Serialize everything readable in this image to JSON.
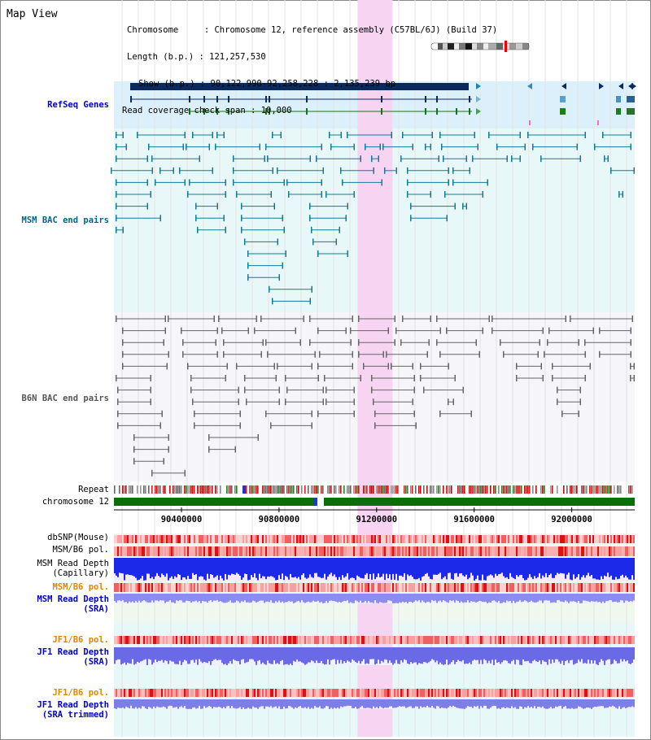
{
  "title": "Map View",
  "info": {
    "chromosome_key": "Chromosome",
    "chromosome_val": "Chromosome 12, reference assembly (C57BL/6J) (Build 37)",
    "length_key": "Length (b.p.)",
    "length_val": "121,257,530",
    "show_key": "Show (b.p.)",
    "show_val": "90,122,990-92,258,228 : 2,135,239 bp",
    "span_key": "Read coverage check span",
    "span_val": "10,000"
  },
  "tracks": {
    "refseq": "RefSeq Genes",
    "msm_bac": "MSM BAC end pairs",
    "b6n_bac": "B6N BAC end pairs",
    "repeat": "Repeat",
    "chromosome": "chromosome 12",
    "dbsnp": "dbSNP(Mouse)",
    "msm_b6_pol": "MSM/B6 pol.",
    "msm_read_depth": "MSM Read Depth",
    "capillary": "(Capillary)",
    "msm_b6_pol_2": "MSM/B6 pol.",
    "msm_read_depth_sra": "MSM Read Depth",
    "sra": "(SRA)",
    "jf1_b6_pol": "JF1/B6 pol.",
    "jf1_read_depth": "JF1 Read Depth",
    "jf1_sra": "(SRA)",
    "jf1_b6_pol_2": "JF1/B6 pol.",
    "jf1_read_depth_trim": "JF1 Read Depth",
    "sra_trimmed": "(SRA trimmed)"
  },
  "axis": {
    "ticks": [
      "90400000",
      "90800000",
      "91200000",
      "91600000",
      "92000000"
    ],
    "tick_values": [
      90400000,
      90800000,
      91200000,
      91600000,
      92000000
    ],
    "start": 90122990,
    "end": 92258228
  },
  "highlight": {
    "start": 91122000,
    "end": 91265000
  },
  "colors": {
    "label_blue": "#0000cc",
    "label_teal": "#006688",
    "label_orange": "#dd8800",
    "highlight": "#f6d4f2",
    "refseq_bg": "#dcf0fb",
    "msm_bg": "#e8f8f8",
    "b6n_bg": "#f6f6fa",
    "chrom_green": "#0a6e0a",
    "depth_blue": "#1a2ae8"
  }
}
